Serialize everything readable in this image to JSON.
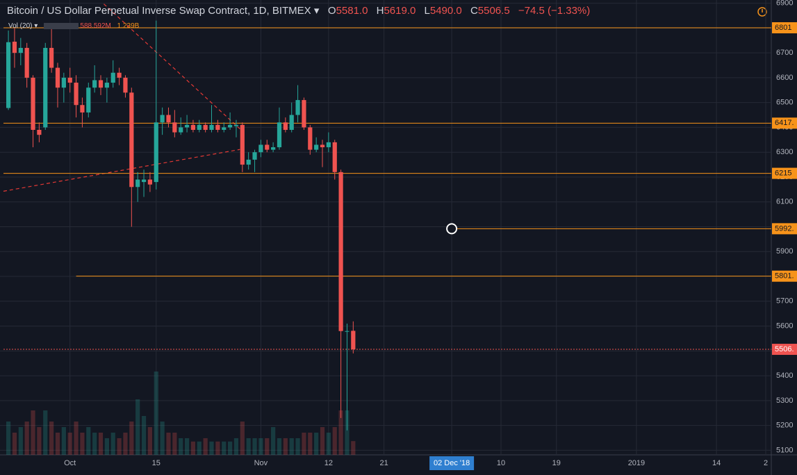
{
  "chart_data": {
    "type": "candlestick",
    "title": "Bitcoin / US Dollar Perpetual Inverse Swap Contract, 1D, BITMEX",
    "ohlc_header": [
      {
        "label": "O",
        "value": "5581.0"
      },
      {
        "label": "H",
        "value": "5619.0"
      },
      {
        "label": "L",
        "value": "5490.0"
      },
      {
        "label": "C",
        "value": "5506.5"
      }
    ],
    "change": "−74.5 (−1.33%)",
    "volume_title": "Vol (20)",
    "volume_ma": "588.592M",
    "volume_last": "1.239B",
    "x": [
      -10,
      -9,
      -8,
      -7,
      -6,
      -5,
      -4,
      -3,
      -2,
      -1,
      0,
      1,
      2,
      3,
      4,
      5,
      6,
      7,
      8,
      9,
      10,
      11,
      12,
      13,
      14,
      15,
      16,
      17,
      18,
      19,
      20,
      21,
      22,
      23,
      24,
      25,
      26,
      27,
      28,
      29,
      30,
      31,
      32,
      33,
      34,
      35,
      36,
      37,
      38,
      39,
      40,
      41,
      42,
      43,
      44,
      45,
      46
    ],
    "open": [
      6478,
      6745,
      6700,
      6720,
      6600,
      6390,
      6400,
      6720,
      6640,
      6560,
      6600,
      6580,
      6490,
      6460,
      6560,
      6590,
      6560,
      6580,
      6620,
      6600,
      6540,
      6160,
      6180,
      6190,
      6180,
      6420,
      6450,
      6420,
      6380,
      6400,
      6410,
      6390,
      6410,
      6390,
      6410,
      6390,
      6400,
      6405,
      6410,
      6250,
      6270,
      6300,
      6330,
      6310,
      6320,
      6420,
      6390,
      6450,
      6510,
      6400,
      6310,
      6330,
      6320,
      6340,
      6220,
      5580,
      5581
    ],
    "high": [
      6790,
      6800,
      6760,
      6740,
      6610,
      6420,
      6740,
      6800,
      6660,
      6620,
      6640,
      6610,
      6520,
      6580,
      6650,
      6610,
      6600,
      6670,
      6640,
      6610,
      6560,
      6220,
      6230,
      6220,
      6830,
      6480,
      6480,
      6470,
      6440,
      6450,
      6430,
      6430,
      6420,
      6490,
      6430,
      6420,
      6460,
      6430,
      6420,
      6300,
      6310,
      6350,
      6350,
      6340,
      6480,
      6440,
      6500,
      6570,
      6520,
      6410,
      6360,
      6350,
      6380,
      6350,
      6230,
      5610,
      5619
    ],
    "low": [
      6470,
      6640,
      6650,
      6560,
      6320,
      6340,
      6390,
      6620,
      6480,
      6500,
      6540,
      6440,
      6400,
      6440,
      6540,
      6530,
      6500,
      6560,
      6570,
      6520,
      6000,
      6100,
      6120,
      6140,
      6150,
      6370,
      6400,
      6360,
      6370,
      6380,
      6380,
      6380,
      6380,
      6380,
      6380,
      6380,
      6390,
      6360,
      6220,
      6230,
      6220,
      6280,
      6300,
      6300,
      6310,
      6380,
      6380,
      6420,
      6390,
      6290,
      6300,
      6240,
      6300,
      6190,
      5230,
      5180,
      5490
    ],
    "close": [
      6743,
      6700,
      6720,
      6600,
      6390,
      6370,
      6720,
      6640,
      6560,
      6600,
      6580,
      6490,
      6460,
      6560,
      6590,
      6560,
      6580,
      6620,
      6600,
      6540,
      6160,
      6190,
      6190,
      6170,
      6420,
      6450,
      6420,
      6380,
      6400,
      6410,
      6390,
      6410,
      6390,
      6410,
      6390,
      6400,
      6410,
      6410,
      6250,
      6270,
      6300,
      6330,
      6310,
      6320,
      6420,
      6390,
      6450,
      6510,
      6400,
      6310,
      6330,
      6320,
      6340,
      6220,
      5580,
      5580,
      5506.5
    ],
    "volume": [
      3,
      2,
      2.5,
      3,
      4,
      2.5,
      4,
      3,
      2,
      2.5,
      2,
      3,
      2,
      2.5,
      2,
      2,
      1.5,
      2,
      1.5,
      2,
      3,
      5,
      3.5,
      2.5,
      7.5,
      3,
      2,
      2,
      1.5,
      1.5,
      1.2,
      1.2,
      1.5,
      1.2,
      1.2,
      1.2,
      1.2,
      1.5,
      3,
      1.5,
      1.5,
      1.5,
      1.5,
      2.5,
      1.5,
      1.5,
      1.5,
      1.5,
      2,
      2,
      2,
      2.5,
      2,
      2.5,
      4,
      4,
      1.239
    ],
    "up_color": "#26a69a",
    "down_color": "#ef5350",
    "xlim": [
      -10.8,
      113.9
    ],
    "xticks": [
      {
        "value": 0,
        "label": "Oct"
      },
      {
        "value": 14,
        "label": "15"
      },
      {
        "value": 31,
        "label": "Nov"
      },
      {
        "value": 42,
        "label": "12"
      },
      {
        "value": 51,
        "label": "21"
      },
      {
        "value": 62,
        "label": "02 Dec '18"
      },
      {
        "value": 70,
        "label": "10"
      },
      {
        "value": 79,
        "label": "19"
      },
      {
        "value": 92,
        "label": "2019"
      },
      {
        "value": 105,
        "label": "14"
      },
      {
        "value": 113,
        "label": "2"
      }
    ],
    "highlight_xtick": 5,
    "ylim": [
      5090,
      6910
    ],
    "yticks": [
      6900,
      6800,
      6700,
      6600,
      6500,
      6400,
      6300,
      6200,
      6100,
      6000,
      5900,
      5800,
      5700,
      5600,
      5500,
      5400,
      5300,
      5200,
      5100
    ],
    "grid": true,
    "levels": [
      {
        "value": 6801,
        "label": "6801",
        "color": "#f7931a"
      },
      {
        "value": 6417,
        "label": "6417.",
        "color": "#f7931a"
      },
      {
        "value": 6215,
        "label": "6215",
        "color": "#f7931a"
      },
      {
        "value": 5992,
        "label": "5992.",
        "color": "#f7931a",
        "from": 62
      },
      {
        "value": 5801,
        "label": "5801.",
        "color": "#f7931a",
        "from": 1
      },
      {
        "value": 5506.5,
        "label": "5506.",
        "color": "#ef5350",
        "dotted": true
      }
    ],
    "trendlines": [
      {
        "x": [
          5.5,
          27.6
        ],
        "y": [
          6897,
          6394
        ],
        "color": "#e53935"
      },
      {
        "x": [
          -10.8,
          27.6
        ],
        "y": [
          6143,
          6311
        ],
        "color": "#e53935"
      }
    ]
  }
}
